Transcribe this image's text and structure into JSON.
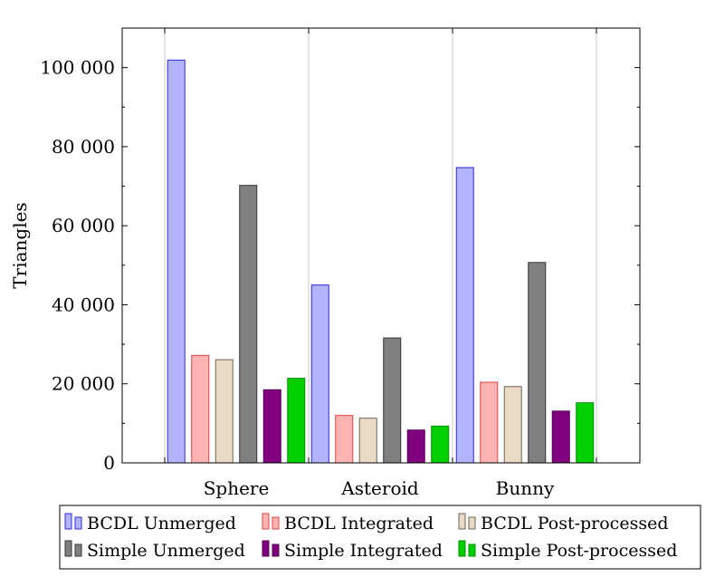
{
  "chart_data": {
    "type": "bar",
    "title": "",
    "xlabel": "",
    "ylabel": "Triangles",
    "ylim": [
      0,
      110000
    ],
    "yticks": [
      0,
      20000,
      40000,
      60000,
      80000,
      100000
    ],
    "ytick_labels": [
      "0",
      "20 000",
      "40 000",
      "60 000",
      "80 000",
      "100 000"
    ],
    "categories": [
      "Sphere",
      "Asteroid",
      "Bunny"
    ],
    "grid": "vertical",
    "legend_position": "bottom",
    "series": [
      {
        "name": "BCDL Unmerged",
        "values": [
          101900,
          45000,
          74700
        ],
        "fill": "#b3b3ff",
        "stroke": "#2b2bdd"
      },
      {
        "name": "BCDL Integrated",
        "values": [
          27200,
          12000,
          20400
        ],
        "fill": "#ffb3b3",
        "stroke": "#e04040"
      },
      {
        "name": "BCDL Post-processed",
        "values": [
          26100,
          11300,
          19300
        ],
        "fill": "#ead9c5",
        "stroke": "#6e6255"
      },
      {
        "name": "Simple Unmerged",
        "values": [
          70200,
          31600,
          50700
        ],
        "fill": "#808080",
        "stroke": "#333333"
      },
      {
        "name": "Simple Integrated",
        "values": [
          18500,
          8300,
          13100
        ],
        "fill": "#800080",
        "stroke": "#500050"
      },
      {
        "name": "Simple Post-processed",
        "values": [
          21400,
          9300,
          15200
        ],
        "fill": "#00d000",
        "stroke": "#009000"
      }
    ]
  }
}
